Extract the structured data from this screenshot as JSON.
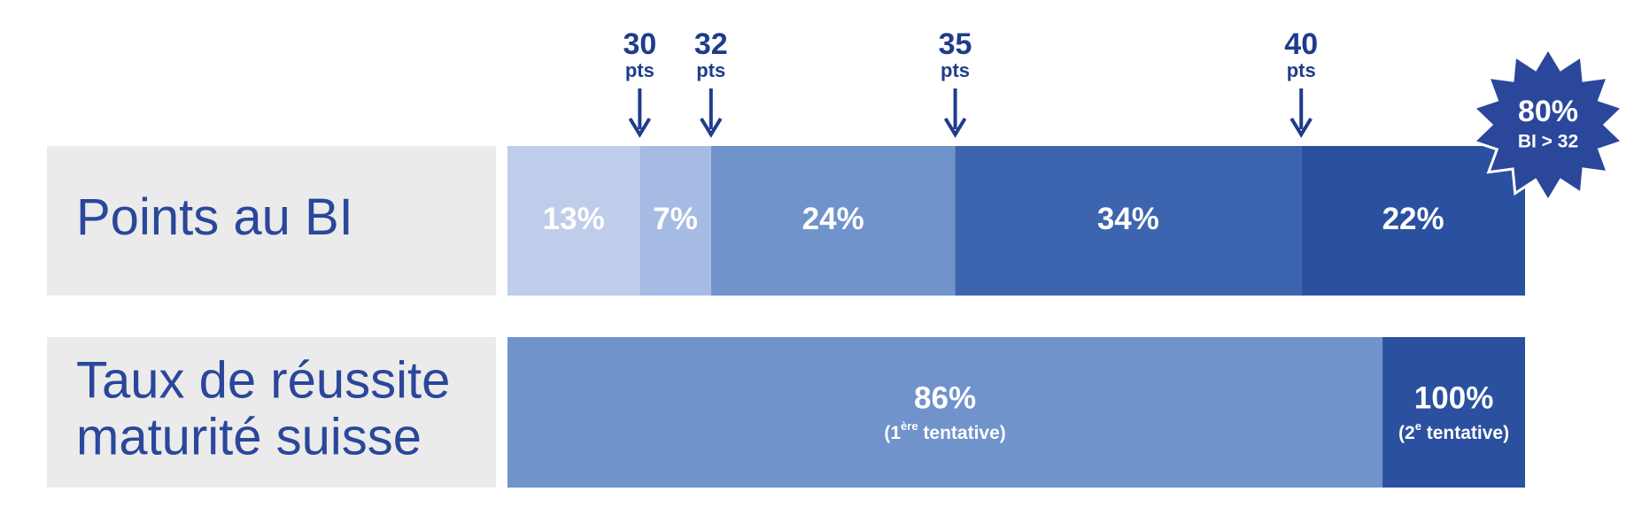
{
  "chart_data": {
    "type": "bar",
    "orientation": "horizontal",
    "xlim": [
      0,
      100
    ],
    "label_box_color": "#ebebeb",
    "rows": [
      {
        "label": [
          "Points au BI"
        ],
        "mode": "stacked",
        "values": [
          13,
          7,
          24,
          34,
          22
        ],
        "value_labels": [
          "13%",
          "7%",
          "24%",
          "34%",
          "22%"
        ],
        "colors": [
          "#bfcdeb",
          "#a6bbe3",
          "#7193cb",
          "#3d64ae",
          "#2a509f"
        ],
        "thresholds": [
          "30",
          "32",
          "35",
          "40"
        ],
        "threshold_unit": "pts",
        "badge": {
          "text": "80%",
          "subtext": "BI > 32"
        }
      },
      {
        "label": [
          "Taux de réussite",
          "maturité suisse"
        ],
        "mode": "overlapping",
        "values": [
          86,
          100
        ],
        "value_labels": [
          "86%",
          "100%"
        ],
        "colors": [
          "#7193cb",
          "#2a509f"
        ],
        "notes": [
          [
            "(1",
            "ère",
            " tentative)"
          ],
          [
            "(2",
            "e",
            " tentative)"
          ]
        ]
      }
    ]
  }
}
